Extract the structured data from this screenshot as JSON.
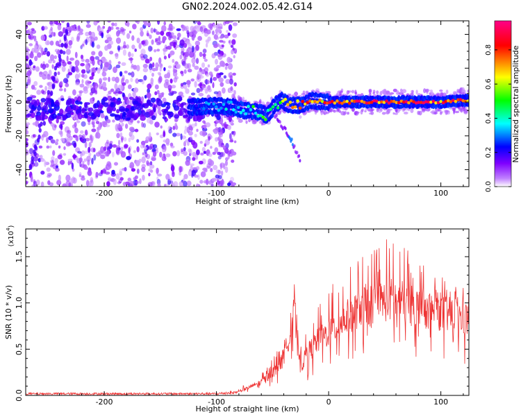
{
  "page_title": "GN02.2024.002.05.42.G14",
  "chart_data": [
    {
      "type": "heatmap",
      "title": "GN02.2024.002.05.42.G14",
      "xlabel": "Height of straight line (km)",
      "ylabel": "Frequency (Hz)",
      "xlim": [
        -270,
        125
      ],
      "ylim": [
        -50,
        48
      ],
      "xticks": [
        -200,
        -100,
        0,
        100
      ],
      "yticks": [
        -40,
        -20,
        0,
        20,
        40
      ],
      "colorbar": {
        "label": "Normalized spectral amplitude",
        "range": [
          0,
          0.97
        ],
        "ticks": [
          "0.0",
          "0.2",
          "0.4",
          "0.6",
          "0.8"
        ],
        "colormap": [
          "#ffffff",
          "#7f00ff",
          "#0000ff",
          "#00ffff",
          "#00ff00",
          "#ffff00",
          "#ff0000",
          "#ff00aa"
        ]
      },
      "noise_region": {
        "x_range": [
          -270,
          -83
        ],
        "amplitude": 0.1
      },
      "signal_track": [
        {
          "x": -120,
          "freq": -3,
          "amp": 0.25
        },
        {
          "x": -100,
          "freq": -2,
          "amp": 0.35
        },
        {
          "x": -85,
          "freq": -3,
          "amp": 0.4
        },
        {
          "x": -75,
          "freq": -5,
          "amp": 0.45
        },
        {
          "x": -60,
          "freq": -6,
          "amp": 0.5
        },
        {
          "x": -55,
          "freq": -8,
          "amp": 0.5
        },
        {
          "x": -48,
          "freq": -2,
          "amp": 0.45
        },
        {
          "x": -42,
          "freq": 1,
          "amp": 0.55
        },
        {
          "x": -35,
          "freq": -2,
          "amp": 0.7
        },
        {
          "x": -25,
          "freq": -2,
          "amp": 0.75
        },
        {
          "x": -15,
          "freq": 1,
          "amp": 0.8
        },
        {
          "x": -5,
          "freq": 0,
          "amp": 0.8
        },
        {
          "x": 10,
          "freq": 0,
          "amp": 0.85
        },
        {
          "x": 40,
          "freq": 0,
          "amp": 0.9
        },
        {
          "x": 80,
          "freq": 0,
          "amp": 0.9
        },
        {
          "x": 100,
          "freq": 0,
          "amp": 0.85
        },
        {
          "x": 125,
          "freq": 1,
          "amp": 0.8
        }
      ],
      "secondary_track": [
        {
          "x": -48,
          "freq": -8
        },
        {
          "x": -40,
          "freq": -15
        },
        {
          "x": -35,
          "freq": -20
        },
        {
          "x": -25,
          "freq": -35
        }
      ]
    },
    {
      "type": "line",
      "xlabel": "Height of straight line (km)",
      "ylabel": "SNR (10 * v/v)",
      "y_multiplier": "(x10",
      "y_multiplier_exp": "4",
      "y_multiplier_close": ")",
      "xlim": [
        -270,
        125
      ],
      "ylim": [
        0,
        1.8
      ],
      "xticks": [
        -200,
        -100,
        0,
        100
      ],
      "yticks": [
        "0.0",
        "0.5",
        "1.0",
        "1.5"
      ],
      "line_color": "#ee3333",
      "series": [
        {
          "x": [
            -270,
            -200,
            -100,
            -80,
            -60,
            -50,
            -40,
            -33,
            -31,
            -28,
            -25,
            -20,
            -10,
            0,
            10,
            20,
            30,
            40,
            50,
            60,
            70,
            80,
            90,
            100,
            110,
            125
          ],
          "y_base": [
            0.02,
            0.02,
            0.02,
            0.04,
            0.15,
            0.25,
            0.4,
            0.8,
            1.1,
            0.55,
            0.3,
            0.45,
            0.6,
            0.7,
            0.8,
            0.9,
            1.0,
            1.02,
            1.05,
            1.08,
            1.0,
            0.98,
            0.96,
            0.92,
            0.88,
            0.84
          ],
          "y_peak": [
            0.05,
            0.05,
            0.05,
            0.07,
            0.25,
            0.4,
            0.6,
            0.95,
            1.25,
            0.8,
            0.6,
            0.8,
            1.0,
            1.15,
            1.3,
            1.4,
            1.5,
            1.6,
            1.7,
            1.75,
            1.6,
            1.5,
            1.4,
            1.3,
            1.2,
            1.15
          ]
        }
      ]
    }
  ]
}
